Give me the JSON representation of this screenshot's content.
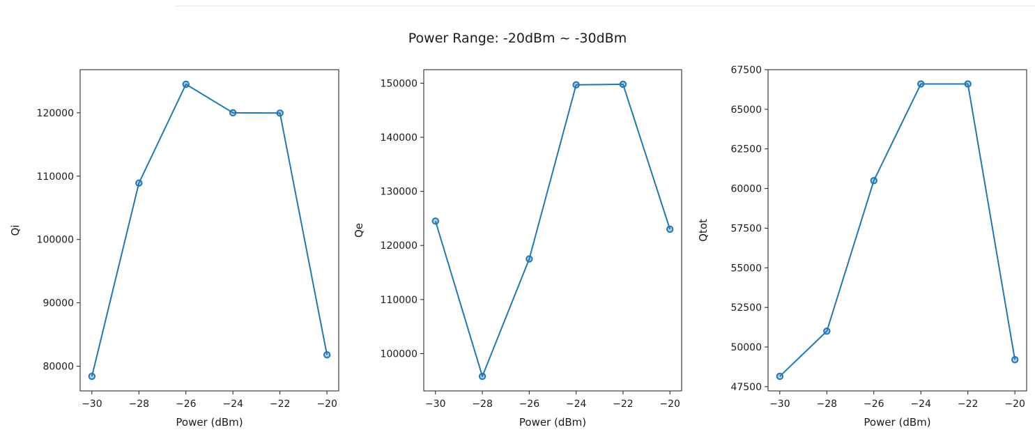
{
  "figure": {
    "suptitle": "Power Range: -20dBm ~ -30dBm",
    "line_color": "#1f77b4"
  },
  "chart_data": [
    {
      "type": "line",
      "xlabel": "Power (dBm)",
      "ylabel": "Qi",
      "x": [
        -30,
        -28,
        -26,
        -24,
        -22,
        -20
      ],
      "series": [
        {
          "values": [
            78400,
            108900,
            124500,
            120000,
            119950,
            81800
          ]
        }
      ],
      "xticks": [
        -30,
        -28,
        -26,
        -24,
        -22,
        -20
      ],
      "xtick_labels": [
        "−30",
        "−28",
        "−26",
        "−24",
        "−22",
        "−20"
      ],
      "yticks": [
        80000,
        90000,
        100000,
        110000,
        120000
      ],
      "ytick_labels": [
        "80000",
        "90000",
        "100000",
        "110000",
        "120000"
      ],
      "xlim": [
        -30.5,
        -19.5
      ],
      "ylim": [
        76100,
        126800
      ],
      "marker": "circle",
      "grid": false
    },
    {
      "type": "line",
      "xlabel": "Power (dBm)",
      "ylabel": "Qe",
      "x": [
        -30,
        -28,
        -26,
        -24,
        -22,
        -20
      ],
      "series": [
        {
          "values": [
            124500,
            95800,
            117500,
            149700,
            149800,
            123000
          ]
        }
      ],
      "xticks": [
        -30,
        -28,
        -26,
        -24,
        -22,
        -20
      ],
      "xtick_labels": [
        "−30",
        "−28",
        "−26",
        "−24",
        "−22",
        "−20"
      ],
      "yticks": [
        100000,
        110000,
        120000,
        130000,
        140000,
        150000
      ],
      "ytick_labels": [
        "100000",
        "110000",
        "120000",
        "130000",
        "140000",
        "150000"
      ],
      "xlim": [
        -30.5,
        -19.5
      ],
      "ylim": [
        93100,
        152500
      ],
      "marker": "circle",
      "grid": false
    },
    {
      "type": "line",
      "xlabel": "Power (dBm)",
      "ylabel": "Qtot",
      "x": [
        -30,
        -28,
        -26,
        -24,
        -22,
        -20
      ],
      "series": [
        {
          "values": [
            48150,
            51000,
            60500,
            66600,
            66600,
            49200
          ]
        }
      ],
      "xticks": [
        -30,
        -28,
        -26,
        -24,
        -22,
        -20
      ],
      "xtick_labels": [
        "−30",
        "−28",
        "−26",
        "−24",
        "−22",
        "−20"
      ],
      "yticks": [
        47500,
        50000,
        52500,
        55000,
        57500,
        60000,
        62500,
        65000,
        67500
      ],
      "ytick_labels": [
        "47500",
        "50000",
        "52500",
        "55000",
        "57500",
        "60000",
        "62500",
        "65000",
        "67500"
      ],
      "xlim": [
        -30.5,
        -19.5
      ],
      "ylim": [
        47230,
        67500
      ],
      "marker": "circle",
      "grid": false
    }
  ]
}
